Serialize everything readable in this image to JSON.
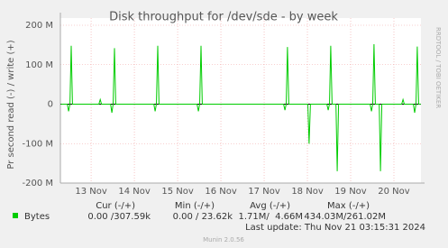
{
  "chart_data": {
    "type": "line",
    "title": "Disk throughput for /dev/sde - by week",
    "y_label": "Pr second read (-) / write (+)",
    "side_text": "RRDTOOL / TOBI OETIKER",
    "x": [
      12.3,
      12.45,
      12.48,
      12.51,
      12.54,
      12.57,
      13.18,
      13.21,
      13.24,
      13.45,
      13.48,
      13.51,
      13.54,
      13.57,
      14.45,
      14.48,
      14.51,
      14.54,
      14.57,
      15.45,
      15.48,
      15.51,
      15.54,
      15.57,
      17.45,
      17.48,
      17.51,
      17.54,
      17.57,
      18.01,
      18.04,
      18.07,
      18.45,
      18.48,
      18.51,
      18.54,
      18.57,
      18.66,
      18.69,
      18.72,
      19.45,
      19.48,
      19.51,
      19.54,
      19.57,
      19.66,
      19.69,
      19.72,
      20.18,
      20.21,
      20.24,
      20.45,
      20.48,
      20.51,
      20.54,
      20.57,
      20.62
    ],
    "series": [
      {
        "name": "Bytes",
        "color": "#00cc00",
        "values": [
          0,
          0,
          -18,
          0,
          148,
          0,
          0,
          12,
          0,
          0,
          -22,
          0,
          142,
          0,
          0,
          -18,
          0,
          148,
          0,
          0,
          -18,
          0,
          148,
          0,
          0,
          -15,
          0,
          145,
          0,
          0,
          -100,
          0,
          0,
          -15,
          0,
          148,
          0,
          0,
          -170,
          0,
          0,
          -18,
          0,
          152,
          0,
          0,
          -170,
          0,
          0,
          12,
          0,
          0,
          -22,
          0,
          146,
          0,
          0
        ]
      }
    ],
    "xlim": [
      12.29,
      20.625
    ],
    "xticks": [
      {
        "value": 13,
        "label": "13 Nov"
      },
      {
        "value": 14,
        "label": "14 Nov"
      },
      {
        "value": 15,
        "label": "15 Nov"
      },
      {
        "value": 16,
        "label": "16 Nov"
      },
      {
        "value": 17,
        "label": "17 Nov"
      },
      {
        "value": 18,
        "label": "18 Nov"
      },
      {
        "value": 19,
        "label": "19 Nov"
      },
      {
        "value": 20,
        "label": "20 Nov"
      }
    ],
    "ylim": [
      -200,
      200
    ],
    "yticks": [
      {
        "value": -200,
        "label": "-200 M"
      },
      {
        "value": -100,
        "label": "-100 M"
      },
      0,
      {
        "value": 100,
        "label": "100 M"
      },
      {
        "value": 200,
        "label": "200 M"
      }
    ],
    "grid": true,
    "legend_table": {
      "headers": [
        "Cur (-/+)",
        "Min (-/+)",
        "Avg (-/+)",
        "Max (-/+)"
      ],
      "row": [
        "0.00 /307.59k",
        "0.00 / 23.62k",
        "1.71M/  4.66M",
        "434.03M/261.02M"
      ]
    },
    "last_update": "Last update: Thu Nov 21 03:15:31 2024",
    "footer": "Munin 2.0.56"
  }
}
